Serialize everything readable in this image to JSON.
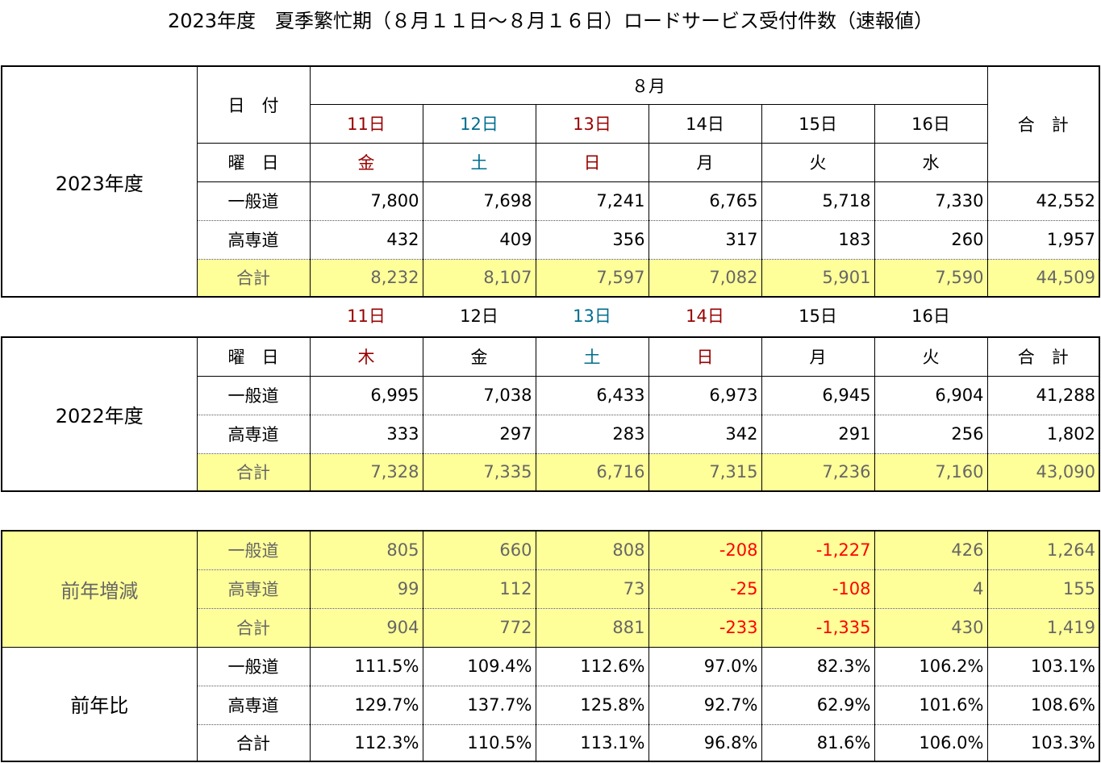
{
  "title": "2023年度　夏季繁忙期（８月１１日～８月１６日）ロードサービス受付件数（速報値）",
  "t2023": {
    "year_label": "2023年度",
    "date_label": "日　付",
    "month_label": "８月",
    "weekday_label": "曜　日",
    "total_header": "合　計",
    "days": [
      "11日",
      "12日",
      "13日",
      "14日",
      "15日",
      "16日"
    ],
    "weekdays": [
      "金",
      "土",
      "日",
      "月",
      "火",
      "水"
    ],
    "rows": [
      {
        "label": "一般道",
        "values": [
          "7,800",
          "7,698",
          "7,241",
          "6,765",
          "5,718",
          "7,330"
        ],
        "total": "42,552"
      },
      {
        "label": "高専道",
        "values": [
          "432",
          "409",
          "356",
          "317",
          "183",
          "260"
        ],
        "total": "1,957"
      },
      {
        "label": "合計",
        "values": [
          "8,232",
          "8,107",
          "7,597",
          "7,082",
          "5,901",
          "7,590"
        ],
        "total": "44,509"
      }
    ]
  },
  "t2022": {
    "year_label": "2022年度",
    "days": [
      "11日",
      "12日",
      "13日",
      "14日",
      "15日",
      "16日"
    ],
    "weekday_label": "曜　日",
    "total_header": "合　計",
    "weekdays": [
      "木",
      "金",
      "土",
      "日",
      "月",
      "火"
    ],
    "rows": [
      {
        "label": "一般道",
        "values": [
          "6,995",
          "7,038",
          "6,433",
          "6,973",
          "6,945",
          "6,904"
        ],
        "total": "41,288"
      },
      {
        "label": "高専道",
        "values": [
          "333",
          "297",
          "283",
          "342",
          "291",
          "256"
        ],
        "total": "1,802"
      },
      {
        "label": "合計",
        "values": [
          "7,328",
          "7,335",
          "6,716",
          "7,315",
          "7,236",
          "7,160"
        ],
        "total": "43,090"
      }
    ]
  },
  "diff": {
    "label": "前年増減",
    "rows": [
      {
        "label": "一般道",
        "values": [
          "805",
          "660",
          "808",
          "-208",
          "-1,227",
          "426"
        ],
        "total": "1,264"
      },
      {
        "label": "高専道",
        "values": [
          "99",
          "112",
          "73",
          "-25",
          "-108",
          "4"
        ],
        "total": "155"
      },
      {
        "label": "合計",
        "values": [
          "904",
          "772",
          "881",
          "-233",
          "-1,335",
          "430"
        ],
        "total": "1,419"
      }
    ]
  },
  "ratio": {
    "label": "前年比",
    "rows": [
      {
        "label": "一般道",
        "values": [
          "111.5%",
          "109.4%",
          "112.6%",
          "97.0%",
          "82.3%",
          "106.2%"
        ],
        "total": "103.1%"
      },
      {
        "label": "高専道",
        "values": [
          "129.7%",
          "137.7%",
          "125.8%",
          "92.7%",
          "62.9%",
          "101.6%"
        ],
        "total": "108.6%"
      },
      {
        "label": "合計",
        "values": [
          "112.3%",
          "110.5%",
          "113.1%",
          "96.8%",
          "81.6%",
          "106.0%"
        ],
        "total": "103.3%"
      }
    ]
  },
  "colors": {
    "highlight_yellow": "#ffff99",
    "negative_red": "#ff0000",
    "weekday_red": "#990000",
    "weekday_teal": "#006d8f",
    "muted_gray": "#666666"
  }
}
